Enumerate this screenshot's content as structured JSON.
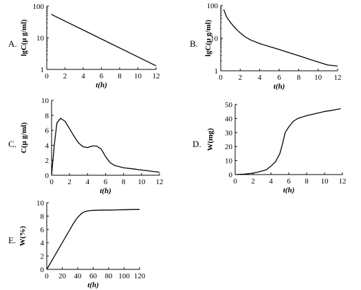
{
  "chart_data": [
    {
      "panel_label": "A.",
      "type": "line",
      "yscale": "log",
      "xlabel": "t(h)",
      "ylabel": "lgC(μ g/ml)",
      "xlim": [
        0,
        12
      ],
      "ylim": [
        1,
        100
      ],
      "xticks": [
        0,
        2,
        4,
        6,
        8,
        10,
        12
      ],
      "yticks": [
        1,
        10,
        100
      ],
      "series": [
        {
          "x": [
            0.5,
            12
          ],
          "y": [
            55,
            1.3
          ]
        }
      ]
    },
    {
      "panel_label": "B.",
      "type": "line",
      "yscale": "log",
      "xlabel": "t(h)",
      "ylabel": "lgC(μ g/ml)",
      "xlim": [
        0,
        12
      ],
      "ylim": [
        1,
        100
      ],
      "xticks": [
        0,
        2,
        4,
        6,
        8,
        10,
        12
      ],
      "yticks": [
        1,
        10,
        100
      ],
      "series": [
        {
          "x": [
            0.3,
            0.6,
            1,
            1.5,
            2,
            2.5,
            3,
            4,
            5,
            6,
            7,
            8,
            9,
            10,
            11,
            12
          ],
          "y": [
            75,
            45,
            30,
            20,
            14.5,
            11,
            9,
            6.8,
            5.5,
            4.5,
            3.6,
            2.9,
            2.3,
            1.85,
            1.5,
            1.4
          ]
        }
      ]
    },
    {
      "panel_label": "C.",
      "type": "line",
      "xlabel": "t(h)",
      "ylabel": "C(μ g/ml)",
      "xlim": [
        0,
        12
      ],
      "ylim": [
        0,
        10
      ],
      "xticks": [
        0,
        2,
        4,
        6,
        8,
        10,
        12
      ],
      "yticks": [
        0,
        2,
        4,
        6,
        8,
        10
      ],
      "series": [
        {
          "x": [
            0,
            0.3,
            0.6,
            1,
            1.5,
            2,
            2.5,
            3,
            3.5,
            4,
            4.5,
            5,
            5.5,
            6,
            6.5,
            7,
            8,
            9,
            10,
            11,
            12
          ],
          "y": [
            0,
            4,
            7,
            7.6,
            7.2,
            6.2,
            5.2,
            4.3,
            3.8,
            3.7,
            3.9,
            3.9,
            3.5,
            2.5,
            1.7,
            1.3,
            1,
            0.85,
            0.7,
            0.55,
            0.4
          ]
        }
      ]
    },
    {
      "panel_label": "D.",
      "type": "line",
      "xlabel": "t(h)",
      "ylabel": "W(mg)",
      "xlim": [
        0,
        12
      ],
      "ylim": [
        0,
        50
      ],
      "xticks": [
        0,
        2,
        4,
        6,
        8,
        10,
        12
      ],
      "yticks": [
        0,
        10,
        20,
        30,
        40,
        50
      ],
      "series": [
        {
          "x": [
            0,
            1,
            2,
            3,
            3.5,
            4,
            4.5,
            5,
            5.3,
            5.6,
            6,
            6.5,
            7,
            8,
            9,
            10,
            11,
            11.8
          ],
          "y": [
            0,
            0.3,
            1,
            2.5,
            3.5,
            6,
            9,
            15,
            22,
            30,
            34,
            38,
            40,
            42,
            43.5,
            45,
            46,
            47
          ]
        }
      ]
    },
    {
      "panel_label": "E.",
      "type": "line",
      "xlabel": "t(h)",
      "ylabel": "W(%)",
      "xlim": [
        0,
        120
      ],
      "ylim": [
        0,
        10
      ],
      "xticks": [
        0,
        20,
        40,
        60,
        80,
        100,
        120
      ],
      "yticks": [
        0,
        2,
        4,
        6,
        8,
        10
      ],
      "series": [
        {
          "x": [
            0,
            10,
            20,
            30,
            35,
            40,
            45,
            50,
            55,
            60,
            70,
            80,
            90,
            100,
            110,
            120
          ],
          "y": [
            0,
            2,
            4,
            6,
            7,
            7.8,
            8.4,
            8.7,
            8.8,
            8.85,
            8.9,
            8.9,
            8.92,
            8.95,
            9,
            9
          ]
        }
      ]
    }
  ]
}
